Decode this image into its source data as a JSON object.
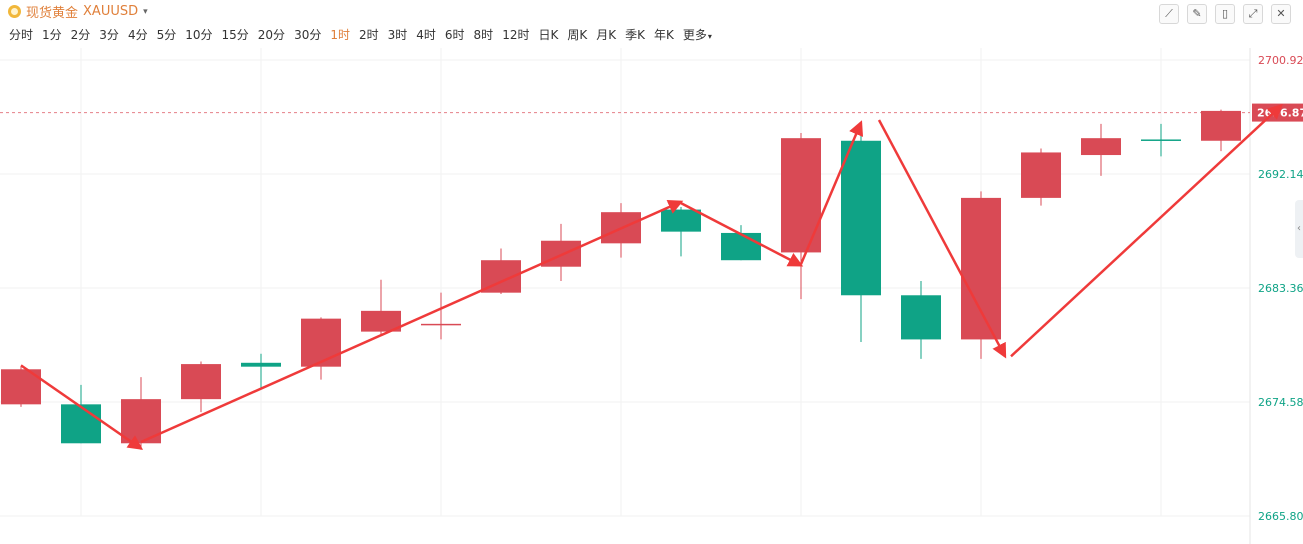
{
  "header": {
    "title": "现货黄金",
    "symbol": "XAUUSD",
    "caret": "▾"
  },
  "periods": [
    "分时",
    "1分",
    "2分",
    "3分",
    "4分",
    "5分",
    "10分",
    "15分",
    "20分",
    "30分",
    "1时",
    "2时",
    "3时",
    "4时",
    "6时",
    "8时",
    "12时",
    "日K",
    "周K",
    "月K",
    "季K",
    "年K",
    "更多"
  ],
  "active_period": "1时",
  "toolbar": {
    "icons": [
      "trend-icon",
      "pencil-icon",
      "candle-icon",
      "expand-icon",
      "close-icon"
    ]
  },
  "colors": {
    "up": "#d94a55",
    "down": "#0fa386",
    "arrow": "#ef3a3a",
    "accent": "#e0803b",
    "price_tag": "#d94a55"
  },
  "chart_data": {
    "type": "candlestick",
    "y_ticks": [
      2700.92,
      2692.14,
      2683.36,
      2674.58,
      2665.8
    ],
    "ylim": [
      2665.8,
      2700.92
    ],
    "last_price": 2696.87,
    "grid": true,
    "candles": [
      {
        "open": 2674.4,
        "close": 2677.1,
        "high": 2677.3,
        "low": 2674.2
      },
      {
        "open": 2674.4,
        "close": 2671.4,
        "high": 2675.9,
        "low": 2671.4
      },
      {
        "open": 2671.4,
        "close": 2674.8,
        "high": 2676.5,
        "low": 2670.9
      },
      {
        "open": 2674.8,
        "close": 2677.5,
        "high": 2677.7,
        "low": 2673.8
      },
      {
        "open": 2677.6,
        "close": 2677.3,
        "high": 2678.3,
        "low": 2675.7
      },
      {
        "open": 2677.3,
        "close": 2681.0,
        "high": 2681.1,
        "low": 2676.3
      },
      {
        "open": 2680.0,
        "close": 2681.6,
        "high": 2684.0,
        "low": 2679.8
      },
      {
        "open": 2680.6,
        "close": 2680.6,
        "high": 2683.0,
        "low": 2679.4
      },
      {
        "open": 2683.0,
        "close": 2685.5,
        "high": 2686.4,
        "low": 2682.9
      },
      {
        "open": 2685.0,
        "close": 2687.0,
        "high": 2688.3,
        "low": 2683.9
      },
      {
        "open": 2686.8,
        "close": 2689.2,
        "high": 2689.9,
        "low": 2685.7
      },
      {
        "open": 2689.4,
        "close": 2687.7,
        "high": 2689.6,
        "low": 2685.8
      },
      {
        "open": 2687.6,
        "close": 2685.5,
        "high": 2688.2,
        "low": 2685.5
      },
      {
        "open": 2686.1,
        "close": 2694.9,
        "high": 2695.3,
        "low": 2682.5
      },
      {
        "open": 2694.7,
        "close": 2682.8,
        "high": 2695.9,
        "low": 2679.2
      },
      {
        "open": 2682.8,
        "close": 2679.4,
        "high": 2683.9,
        "low": 2677.9
      },
      {
        "open": 2679.4,
        "close": 2690.3,
        "high": 2690.8,
        "low": 2677.9
      },
      {
        "open": 2690.3,
        "close": 2693.8,
        "high": 2694.1,
        "low": 2689.7
      },
      {
        "open": 2693.6,
        "close": 2694.9,
        "high": 2696.0,
        "low": 2692.0
      },
      {
        "open": 2694.8,
        "close": 2694.7,
        "high": 2696.0,
        "low": 2693.5
      },
      {
        "open": 2694.7,
        "close": 2697.0,
        "high": 2697.1,
        "low": 2693.9
      }
    ],
    "arrows": [
      {
        "from": [
          0,
          2677.4
        ],
        "to": [
          2,
          2671.0
        ]
      },
      {
        "from": [
          2,
          2671.5
        ],
        "to": [
          11,
          2690.0
        ]
      },
      {
        "from": [
          11,
          2689.9
        ],
        "to": [
          13,
          2685.1
        ]
      },
      {
        "from": [
          13,
          2685.2
        ],
        "to": [
          14,
          2696.1
        ]
      },
      {
        "from": [
          14.3,
          2696.3
        ],
        "to": [
          16.4,
          2678.1
        ]
      },
      {
        "from": [
          16.5,
          2678.1
        ],
        "to": [
          21,
          2697.4
        ]
      }
    ]
  }
}
